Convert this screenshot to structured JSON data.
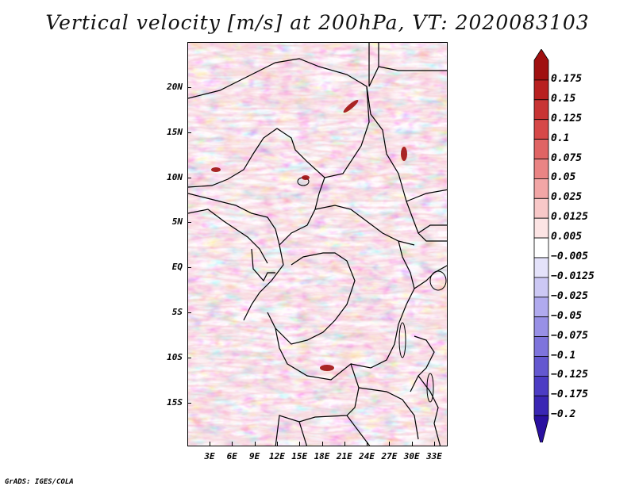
{
  "title": "Vertical velocity [m/s] at 200hPa, VT: 2020083103",
  "map": {
    "variable": "Vertical velocity",
    "units": "m/s",
    "level": "200hPa",
    "valid_time": "2020083103",
    "lat_labels": [
      "20N",
      "15N",
      "10N",
      "5N",
      "EQ",
      "5S",
      "10S",
      "15S"
    ],
    "lon_labels": [
      "3E",
      "6E",
      "9E",
      "12E",
      "15E",
      "18E",
      "21E",
      "24E",
      "27E",
      "30E",
      "33E"
    ]
  },
  "colorbar": {
    "labels": [
      "0.175",
      "0.15",
      "0.125",
      "0.1",
      "0.075",
      "0.05",
      "0.025",
      "0.0125",
      "0.005",
      "-0.005",
      "-0.0125",
      "-0.025",
      "-0.05",
      "-0.075",
      "-0.1",
      "-0.125",
      "-0.175",
      "-0.2"
    ],
    "colors": [
      "#a01010",
      "#b82020",
      "#c83434",
      "#d64848",
      "#e06464",
      "#ea8484",
      "#f2a6a6",
      "#f8c8c8",
      "#fce4e4",
      "#ffffff",
      "#e4e2fa",
      "#ccc8f4",
      "#b0aaee",
      "#9890e6",
      "#7e74dc",
      "#6458d0",
      "#4c3cc4",
      "#3a26b4",
      "#2a10a0"
    ]
  },
  "footer": "GrADS: IGES/COLA"
}
